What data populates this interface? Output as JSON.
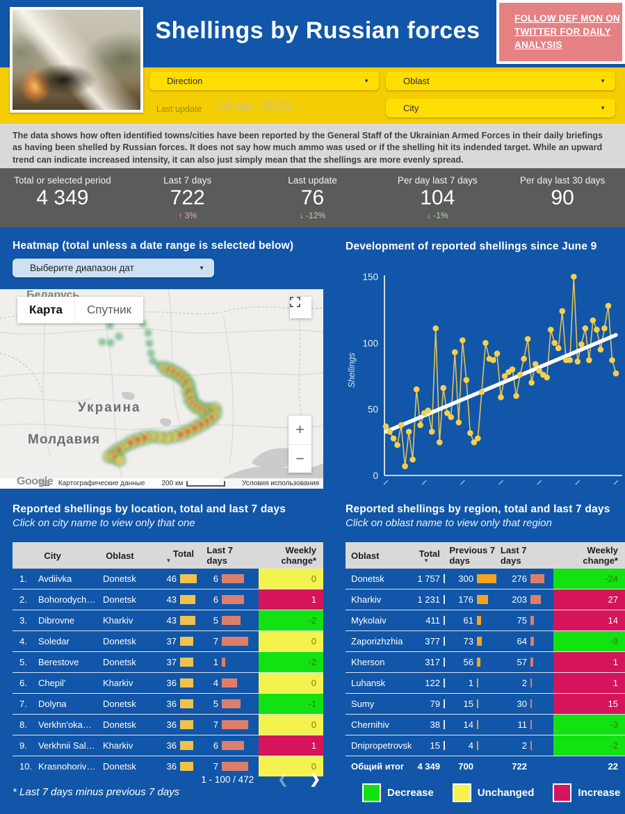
{
  "header": {
    "title": "Shellings by Russian forces",
    "twitter_cta": "FOLLOW DEF MON ON TWITTER FOR DAILY ANALYSIS"
  },
  "filters": {
    "direction": "Direction",
    "oblast": "Oblast",
    "city": "City",
    "last_update_label": "Last update",
    "last_update_value": "14 авг. 2022..."
  },
  "description": "The data shows how often identified towns/cities have been reported by the General Staff of the Ukrainian Armed Forces in their daily briefings as having been shelled by Russian forces. It does not say how much ammo was used or if the shelling hit its indended target. While an upward trend can indicate increased intensity, it can also just simply mean that the shellings are more evenly spread.",
  "stats": [
    {
      "label": "Total or selected period",
      "value": "4 349",
      "delta": null,
      "direction": null
    },
    {
      "label": "Last 7 days",
      "value": "722",
      "delta": "3%",
      "direction": "up"
    },
    {
      "label": "Last update",
      "value": "76",
      "delta": "-12%",
      "direction": "down"
    },
    {
      "label": "Per day last 7 days",
      "value": "104",
      "delta": "-1%",
      "direction": "down"
    },
    {
      "label": "Per day last 30 days",
      "value": "90",
      "delta": null,
      "direction": null
    }
  ],
  "heatmap_section": {
    "title": "Heatmap (total unless a date range is selected below)",
    "date_range_placeholder": "Выберите диапазон дат",
    "map": {
      "map_tab": "Карта",
      "satellite_tab": "Спутник",
      "label_ukraine": "Украина",
      "label_moldova": "Молдавия",
      "label_belarus": "Беларусь",
      "attribution": "Картографические данные",
      "scale_label": "200 км",
      "terms": "Условия использования",
      "logo": "Google"
    }
  },
  "chart_section": {
    "title": "Development of reported shellings since June 9"
  },
  "chart_data": {
    "type": "line",
    "title": "Development of reported shellings since June 9",
    "xlabel": "",
    "ylabel": "Shellings",
    "ylim": [
      0,
      150
    ],
    "yticks": [
      0,
      50,
      100,
      150
    ],
    "x_range": "daily, June 9 - Aug 14 2022",
    "x_tick_labels": "seven tiny rotated date marks (illegible)",
    "values": [
      37,
      33,
      28,
      23,
      38,
      7,
      33,
      12,
      65,
      38,
      47,
      49,
      33,
      111,
      25,
      66,
      47,
      44,
      93,
      40,
      102,
      72,
      32,
      25,
      28,
      63,
      100,
      88,
      87,
      92,
      59,
      75,
      78,
      80,
      60,
      76,
      88,
      103,
      70,
      84,
      79,
      76,
      74,
      110,
      100,
      96,
      124,
      87,
      87,
      150,
      86,
      99,
      111,
      87,
      117,
      110,
      95,
      111,
      128,
      87,
      77
    ],
    "trend_line": {
      "start": 33,
      "end": 106,
      "color": "#FFFFFF"
    },
    "point_color": "#F8CE4D",
    "legend_position": "none",
    "grid": false
  },
  "left_table": {
    "title": "Reported shellings by location, total and last 7 days",
    "subtitle": "Click on city name to view only that one",
    "columns": [
      "",
      "City",
      "Oblast",
      "Total",
      "Last 7 days",
      "Weekly change*"
    ],
    "sort_column": "Total",
    "rows": [
      {
        "rank": "1.",
        "city": "Avdiivka",
        "oblast": "Donetsk",
        "total": 46,
        "last7": 6,
        "change": 0,
        "status": "unchanged"
      },
      {
        "rank": "2.",
        "city": "Bohorodych…",
        "oblast": "Donetsk",
        "total": 43,
        "last7": 6,
        "change": 1,
        "status": "increase"
      },
      {
        "rank": "3.",
        "city": "Dibrovne",
        "oblast": "Kharkiv",
        "total": 43,
        "last7": 5,
        "change": -2,
        "status": "decrease"
      },
      {
        "rank": "4.",
        "city": "Soledar",
        "oblast": "Donetsk",
        "total": 37,
        "last7": 7,
        "change": 0,
        "status": "unchanged"
      },
      {
        "rank": "5.",
        "city": "Berestove",
        "oblast": "Donetsk",
        "total": 37,
        "last7": 1,
        "change": -2,
        "status": "decrease"
      },
      {
        "rank": "6.",
        "city": "Chepil'",
        "oblast": "Kharkiv",
        "total": 36,
        "last7": 4,
        "change": 0,
        "status": "unchanged"
      },
      {
        "rank": "7.",
        "city": "Dolyna",
        "oblast": "Donetsk",
        "total": 36,
        "last7": 5,
        "change": -1,
        "status": "decrease"
      },
      {
        "rank": "8.",
        "city": "Verkhn'oka…",
        "oblast": "Donetsk",
        "total": 36,
        "last7": 7,
        "change": 0,
        "status": "unchanged"
      },
      {
        "rank": "9.",
        "city": "Verkhnii Sal…",
        "oblast": "Kharkiv",
        "total": 36,
        "last7": 6,
        "change": 1,
        "status": "increase"
      },
      {
        "rank": "10.",
        "city": "Krasnohoriv…",
        "oblast": "Donetsk",
        "total": 36,
        "last7": 7,
        "change": 0,
        "status": "unchanged"
      }
    ],
    "pagination": "1 - 100 / 472",
    "footnote": "* Last 7 days minus previous 7 days"
  },
  "right_table": {
    "title": "Reported shellings by region, total and last 7 days",
    "subtitle": "Click on oblast name to view only that region",
    "columns": [
      "Oblast",
      "Total",
      "Previous 7 days",
      "Last 7 days",
      "Weekly change*"
    ],
    "sort_column": "Total",
    "rows": [
      {
        "oblast": "Donetsk",
        "total": "1 757",
        "prev7": 300,
        "last7": 276,
        "change": -24,
        "status": "decrease"
      },
      {
        "oblast": "Kharkiv",
        "total": "1 231",
        "prev7": 176,
        "last7": 203,
        "change": 27,
        "status": "increase"
      },
      {
        "oblast": "Mykolaiv",
        "total": "411",
        "prev7": 61,
        "last7": 75,
        "change": 14,
        "status": "increase"
      },
      {
        "oblast": "Zaporizhzhia",
        "total": "377",
        "prev7": 73,
        "last7": 64,
        "change": -9,
        "status": "decrease"
      },
      {
        "oblast": "Kherson",
        "total": "317",
        "prev7": 56,
        "last7": 57,
        "change": 1,
        "status": "increase"
      },
      {
        "oblast": "Luhansk",
        "total": "122",
        "prev7": 1,
        "last7": 2,
        "change": 1,
        "status": "increase"
      },
      {
        "oblast": "Sumy",
        "total": "79",
        "prev7": 15,
        "last7": 30,
        "change": 15,
        "status": "increase"
      },
      {
        "oblast": "Chernihiv",
        "total": "38",
        "prev7": 14,
        "last7": 11,
        "change": -3,
        "status": "decrease"
      },
      {
        "oblast": "Dnipropetrovsk",
        "total": "15",
        "prev7": 4,
        "last7": 2,
        "change": -2,
        "status": "decrease"
      }
    ],
    "total_row": {
      "label": "Общий итог",
      "total": "4 349",
      "prev7": "700",
      "last7": "722",
      "change": "22"
    }
  },
  "legend": [
    {
      "label": "Decrease",
      "color": "#12E112"
    },
    {
      "label": "Unchanged",
      "color": "#F4F34E"
    },
    {
      "label": "Increase",
      "color": "#D5145C"
    }
  ],
  "colors": {
    "page_blue": "#1156A8",
    "band_yellow": "#F4CD03",
    "cta_pink": "#E58183",
    "stats_gray": "#5B5B5B",
    "table_header_gray": "#D9D9D9",
    "bar_total_yellow": "#F0C24B",
    "bar_last7_salmon": "#DD7E6B",
    "bar_prev7_orange": "#F6A41F",
    "delta_up_pink": "#E7AEB6",
    "delta_down_green": "#B4D8A9"
  }
}
